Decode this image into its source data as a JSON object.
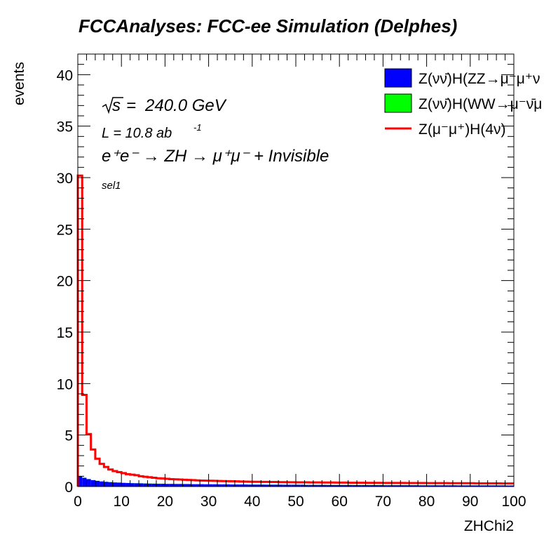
{
  "chart_data": {
    "type": "histogram",
    "title": "FCCAnalyses: FCC-ee Simulation (Delphes)",
    "xlabel": "ZHChi2",
    "ylabel": "events",
    "xlim": [
      0,
      100
    ],
    "ylim": [
      0,
      42
    ],
    "x_ticks": [
      "0",
      "10",
      "20",
      "30",
      "40",
      "50",
      "60",
      "70",
      "80",
      "90",
      "100"
    ],
    "y_ticks": [
      "0",
      "5",
      "10",
      "15",
      "20",
      "25",
      "30",
      "35",
      "40"
    ],
    "bin_edges_start": 0,
    "bin_width": 1,
    "annotations": {
      "sqrt_s": "240.0 GeV",
      "lumi": "L = 10.8 ab",
      "lumi_exp": "-1",
      "process": "e⁺e⁻ → ZH → μ⁺μ⁻ + Invisible",
      "selection": "sel1"
    },
    "legend": [
      {
        "label": "Z(νν̄)H(ZZ→μ⁻μ⁺ν",
        "color": "#0000ff",
        "style": "fill"
      },
      {
        "label": "Z(νν̄)H(WW→μ⁻ν̄μ",
        "color": "#00ff00",
        "style": "fill"
      },
      {
        "label": "Z(μ⁻μ⁺)H(4ν)",
        "color": "#ff0000",
        "style": "line"
      }
    ],
    "series": [
      {
        "name": "Z(νν̄)H(ZZ→μ⁻μ⁺ν",
        "color": "#0000ff",
        "style": "fill",
        "values": [
          1.0,
          0.85,
          0.72,
          0.62,
          0.55,
          0.5,
          0.46,
          0.43,
          0.4,
          0.38,
          0.36,
          0.34,
          0.33,
          0.32,
          0.31,
          0.3,
          0.29,
          0.28,
          0.27,
          0.27,
          0.26,
          0.26,
          0.25,
          0.25,
          0.24,
          0.24,
          0.23,
          0.23,
          0.23,
          0.22,
          0.22,
          0.22,
          0.21,
          0.21,
          0.21,
          0.2,
          0.2,
          0.2,
          0.2,
          0.19,
          0.19,
          0.19,
          0.19,
          0.18,
          0.18,
          0.18,
          0.18,
          0.17,
          0.17,
          0.17,
          0.17,
          0.17,
          0.16,
          0.16,
          0.16,
          0.16,
          0.16,
          0.15,
          0.15,
          0.15,
          0.15,
          0.15,
          0.15,
          0.14,
          0.14,
          0.14,
          0.14,
          0.14,
          0.14,
          0.14,
          0.13,
          0.13,
          0.13,
          0.13,
          0.13,
          0.13,
          0.13,
          0.13,
          0.12,
          0.12,
          0.12,
          0.12,
          0.12,
          0.12,
          0.12,
          0.12,
          0.12,
          0.11,
          0.11,
          0.11,
          0.11,
          0.11,
          0.11,
          0.11,
          0.11,
          0.11,
          0.11,
          0.11,
          0.1,
          0.1
        ]
      },
      {
        "name": "Z(νν̄)H(WW→μ⁻ν̄μ",
        "color": "#00ff00",
        "style": "fill",
        "values": [
          0.01,
          0.01,
          0.01,
          0.01,
          0.01,
          0.01,
          0.01,
          0.01,
          0.01,
          0.01,
          0.01,
          0.01,
          0.01,
          0.01,
          0.01,
          0.01,
          0.01,
          0.01,
          0.01,
          0.01,
          0.01,
          0.01,
          0.01,
          0.01,
          0.01,
          0.01,
          0.01,
          0.01,
          0.01,
          0.01,
          0.01,
          0.01,
          0.01,
          0.01,
          0.01,
          0.01,
          0.01,
          0.01,
          0.01,
          0.01,
          0.01,
          0.01,
          0.01,
          0.01,
          0.01,
          0.01,
          0.01,
          0.01,
          0.01,
          0.01,
          0.01,
          0.01,
          0.01,
          0.01,
          0.01,
          0.01,
          0.01,
          0.01,
          0.01,
          0.01,
          0.01,
          0.01,
          0.01,
          0.01,
          0.01,
          0.01,
          0.01,
          0.01,
          0.01,
          0.01,
          0.01,
          0.01,
          0.01,
          0.01,
          0.01,
          0.01,
          0.01,
          0.01,
          0.01,
          0.01,
          0.01,
          0.01,
          0.01,
          0.01,
          0.01,
          0.01,
          0.01,
          0.01,
          0.01,
          0.01,
          0.01,
          0.01,
          0.01,
          0.01,
          0.01,
          0.01,
          0.01,
          0.01,
          0.01,
          0.01
        ]
      },
      {
        "name": "Z(μ⁻μ⁺)H(4ν)",
        "color": "#ff0000",
        "style": "line",
        "values": [
          30.2,
          8.9,
          5.1,
          3.6,
          2.7,
          2.2,
          1.9,
          1.65,
          1.5,
          1.4,
          1.3,
          1.2,
          1.15,
          1.1,
          1.0,
          0.95,
          0.9,
          0.85,
          0.8,
          0.78,
          0.75,
          0.72,
          0.7,
          0.68,
          0.66,
          0.64,
          0.62,
          0.6,
          0.58,
          0.57,
          0.56,
          0.55,
          0.54,
          0.53,
          0.52,
          0.51,
          0.5,
          0.49,
          0.48,
          0.47,
          0.46,
          0.46,
          0.45,
          0.45,
          0.44,
          0.44,
          0.43,
          0.43,
          0.42,
          0.42,
          0.41,
          0.41,
          0.41,
          0.4,
          0.4,
          0.4,
          0.39,
          0.39,
          0.39,
          0.38,
          0.38,
          0.38,
          0.37,
          0.37,
          0.37,
          0.37,
          0.36,
          0.36,
          0.36,
          0.36,
          0.35,
          0.35,
          0.35,
          0.35,
          0.35,
          0.34,
          0.34,
          0.34,
          0.34,
          0.34,
          0.33,
          0.33,
          0.33,
          0.33,
          0.33,
          0.32,
          0.32,
          0.32,
          0.32,
          0.32,
          0.32,
          0.31,
          0.31,
          0.31,
          0.31,
          0.31,
          0.31,
          0.3,
          0.3,
          0.3
        ]
      }
    ]
  }
}
